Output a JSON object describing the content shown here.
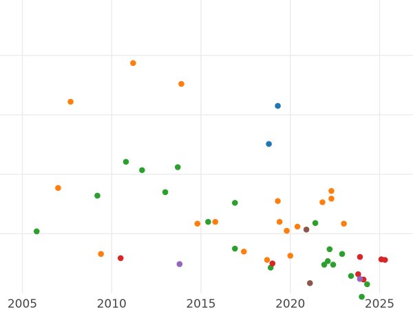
{
  "chart_data": {
    "type": "scatter",
    "title": "",
    "xlabel": "",
    "ylabel": "",
    "xlim": [
      2004.0,
      2026.7
    ],
    "ylim": [
      0,
      495
    ],
    "x_ticks": [
      2005,
      2010,
      2015,
      2020,
      2025
    ],
    "x_tick_labels": [
      "2005",
      "2010",
      "2015",
      "2020",
      "2025"
    ],
    "y_gridlines": [
      100,
      200,
      300,
      400
    ],
    "y_tick_labels_visible": false,
    "grid": true,
    "legend": "none",
    "series": [
      {
        "color": "#1f77b4",
        "points": [
          [
            2019.3,
            315
          ],
          [
            2018.8,
            251
          ]
        ]
      },
      {
        "color": "#ff7f0e",
        "points": [
          [
            2011.2,
            387
          ],
          [
            2013.9,
            352
          ],
          [
            2007.7,
            322
          ],
          [
            2007.0,
            177
          ],
          [
            2009.4,
            66
          ],
          [
            2014.8,
            117
          ],
          [
            2015.8,
            120
          ],
          [
            2017.4,
            70
          ],
          [
            2018.7,
            56
          ],
          [
            2019.4,
            120
          ],
          [
            2019.3,
            155
          ],
          [
            2019.8,
            105
          ],
          [
            2020.0,
            63
          ],
          [
            2020.4,
            112
          ],
          [
            2021.8,
            153
          ],
          [
            2022.3,
            159
          ],
          [
            2022.3,
            172
          ],
          [
            2023.0,
            117
          ]
        ]
      },
      {
        "color": "#2ca02c",
        "points": [
          [
            2005.8,
            104
          ],
          [
            2009.2,
            164
          ],
          [
            2010.8,
            221
          ],
          [
            2011.7,
            207
          ],
          [
            2013.0,
            170
          ],
          [
            2013.7,
            212
          ],
          [
            2015.4,
            120
          ],
          [
            2016.9,
            152
          ],
          [
            2016.9,
            75
          ],
          [
            2018.9,
            43
          ],
          [
            2021.4,
            118
          ],
          [
            2021.9,
            48
          ],
          [
            2022.1,
            54
          ],
          [
            2022.2,
            74
          ],
          [
            2022.4,
            48
          ],
          [
            2022.9,
            66
          ],
          [
            2023.4,
            29
          ],
          [
            2024.3,
            15
          ],
          [
            2024.0,
            -6
          ],
          [
            2025.1,
            57
          ]
        ]
      },
      {
        "color": "#d62728",
        "points": [
          [
            2010.5,
            59
          ],
          [
            2019.0,
            50
          ],
          [
            2023.9,
            61
          ],
          [
            2023.8,
            32
          ],
          [
            2024.1,
            23
          ],
          [
            2025.1,
            57
          ],
          [
            2025.3,
            56
          ]
        ]
      },
      {
        "color": "#9467bd",
        "points": [
          [
            2013.8,
            49
          ],
          [
            2023.9,
            24
          ]
        ]
      },
      {
        "color": "#8c564b",
        "points": [
          [
            2020.9,
            107
          ],
          [
            2021.1,
            17
          ]
        ]
      }
    ]
  }
}
